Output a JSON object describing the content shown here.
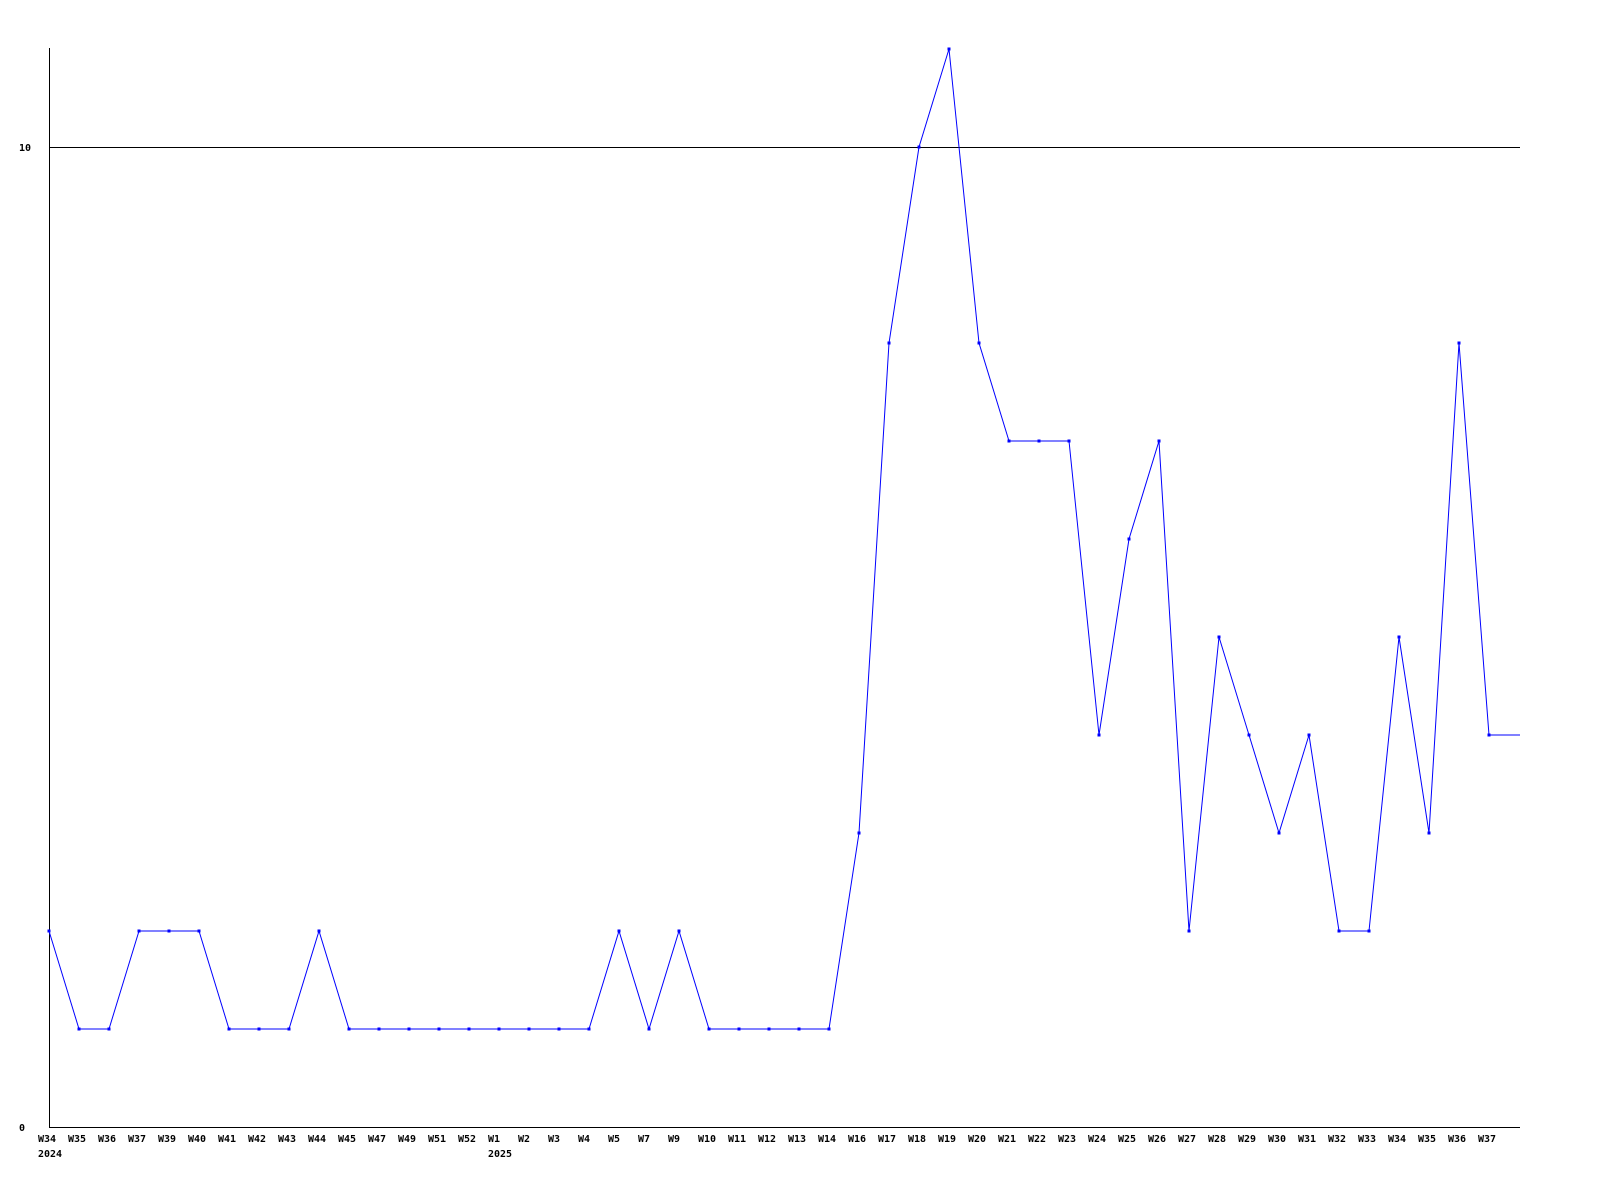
{
  "chart_data": {
    "type": "line",
    "title": "",
    "xlabel": "",
    "ylabel": "",
    "ylim": [
      0,
      11
    ],
    "yticks": [
      "0",
      "10"
    ],
    "grid": "horizontal line at 10",
    "line_color": "#0000ff",
    "categories": [
      "W34",
      "W35",
      "W36",
      "W37",
      "W39",
      "W40",
      "W41",
      "W42",
      "W43",
      "W44",
      "W45",
      "W47",
      "W49",
      "W51",
      "W52",
      "W1",
      "W2",
      "W3",
      "W4",
      "W5",
      "W7",
      "W9",
      "W10",
      "W11",
      "W12",
      "W13",
      "W14",
      "W16",
      "W17",
      "W18",
      "W19",
      "W20",
      "W21",
      "W22",
      "W23",
      "W24",
      "W25",
      "W26",
      "W27",
      "W28",
      "W29",
      "W30",
      "W31",
      "W32",
      "W33",
      "W34",
      "W35",
      "W36",
      "W37"
    ],
    "year_labels": [
      {
        "index": 0,
        "label": "2024"
      },
      {
        "index": 15,
        "label": "2025"
      }
    ],
    "values": [
      2,
      1,
      1,
      2,
      2,
      2,
      1,
      1,
      1,
      2,
      1,
      1,
      1,
      1,
      1,
      1,
      1,
      1,
      1,
      2,
      1,
      2,
      1,
      1,
      1,
      1,
      1,
      3,
      8,
      10,
      11,
      8,
      7,
      7,
      7,
      4,
      6,
      7,
      2,
      5,
      4,
      3,
      4,
      2,
      2,
      5,
      3,
      8,
      4
    ]
  }
}
